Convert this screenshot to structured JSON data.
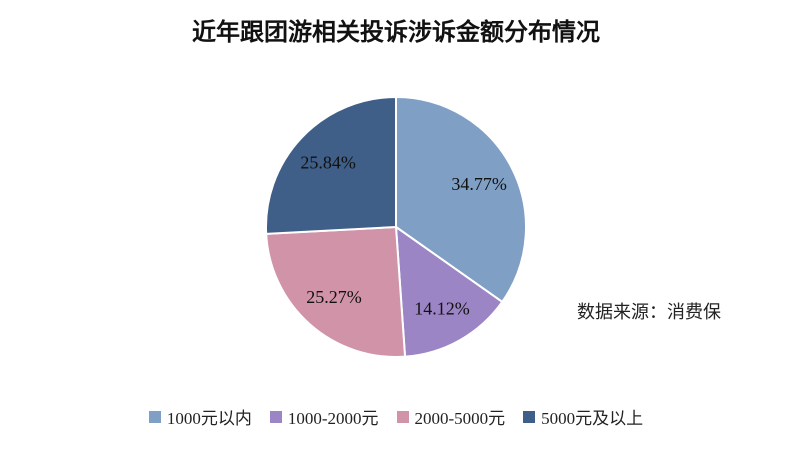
{
  "chart_data": {
    "type": "pie",
    "title": "近年跟团游相关投诉涉诉金额分布情况",
    "categories": [
      "1000元以内",
      "1000-2000元",
      "2000-5000元",
      "5000元及以上"
    ],
    "values": [
      34.77,
      14.12,
      25.27,
      25.84
    ],
    "value_labels": [
      "34.77%",
      "14.12%",
      "25.27%",
      "25.84%"
    ],
    "colors": [
      "#7f9fc4",
      "#9b85c4",
      "#d193a7",
      "#3f5e88"
    ],
    "legend_position": "bottom",
    "source": "数据来源：消费保"
  }
}
